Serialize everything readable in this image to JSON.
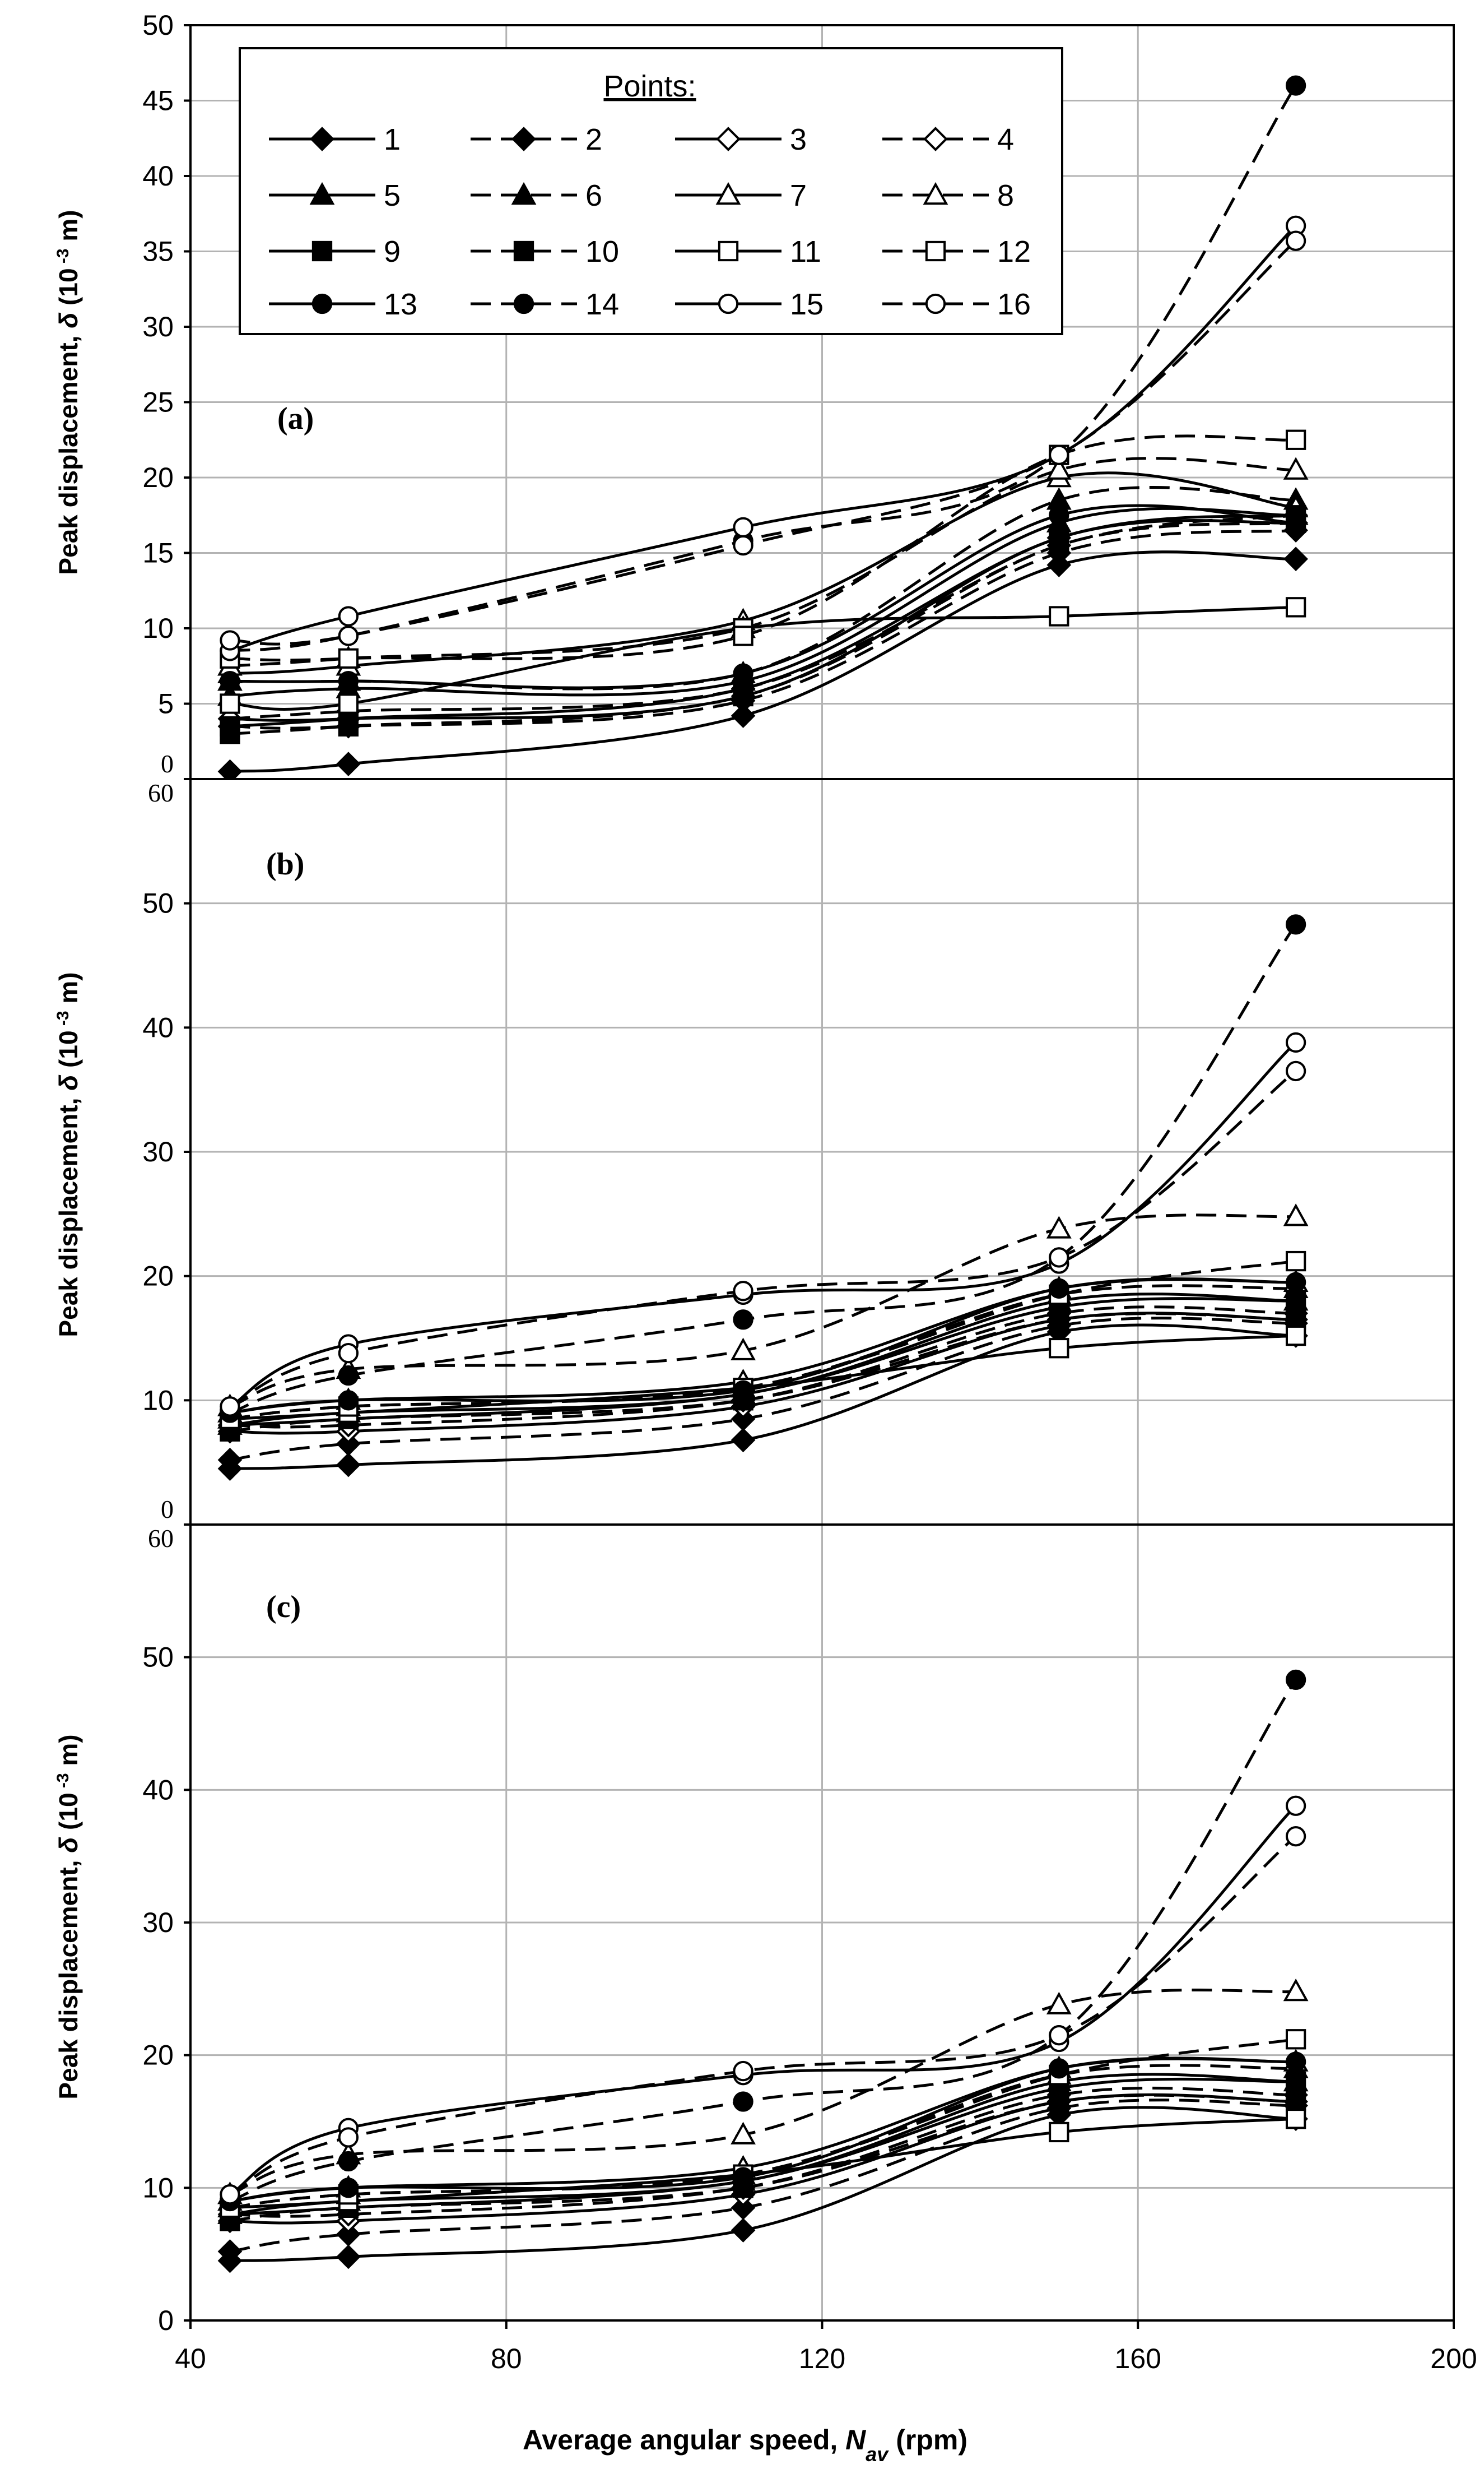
{
  "figure": {
    "xlabel_prefix": "Average angular speed, ",
    "xlabel_var": "N",
    "xlabel_sub": "av",
    "xlabel_unit": " (rpm)",
    "ylabel_prefix": "Peak displacement, ",
    "ylabel_var": "δ",
    "ylabel_unit_a": " (10",
    "ylabel_exp": " -3",
    "ylabel_unit_b": " m)"
  },
  "legend": {
    "title": "Points:",
    "entries": [
      {
        "label": "1",
        "marker": "diamond",
        "filled": true,
        "dash": false
      },
      {
        "label": "2",
        "marker": "diamond",
        "filled": true,
        "dash": true
      },
      {
        "label": "3",
        "marker": "diamond",
        "filled": false,
        "dash": false
      },
      {
        "label": "4",
        "marker": "diamond",
        "filled": false,
        "dash": true
      },
      {
        "label": "5",
        "marker": "triangle",
        "filled": true,
        "dash": false
      },
      {
        "label": "6",
        "marker": "triangle",
        "filled": true,
        "dash": true
      },
      {
        "label": "7",
        "marker": "triangle",
        "filled": false,
        "dash": false
      },
      {
        "label": "8",
        "marker": "triangle",
        "filled": false,
        "dash": true
      },
      {
        "label": "9",
        "marker": "square",
        "filled": true,
        "dash": false
      },
      {
        "label": "10",
        "marker": "square",
        "filled": true,
        "dash": true
      },
      {
        "label": "11",
        "marker": "square",
        "filled": false,
        "dash": false
      },
      {
        "label": "12",
        "marker": "square",
        "filled": false,
        "dash": true
      },
      {
        "label": "13",
        "marker": "circle",
        "filled": true,
        "dash": false
      },
      {
        "label": "14",
        "marker": "circle",
        "filled": true,
        "dash": true
      },
      {
        "label": "15",
        "marker": "circle",
        "filled": false,
        "dash": false
      },
      {
        "label": "16",
        "marker": "circle",
        "filled": false,
        "dash": true
      }
    ]
  },
  "chart_data": [
    {
      "type": "line",
      "panel": "(a)",
      "xlabel": "Average angular speed, Nav (rpm)",
      "ylabel": "Peak displacement, δ (10 -3 m)",
      "x": [
        45,
        60,
        110,
        150,
        180
      ],
      "xlim": [
        40,
        200
      ],
      "ylim": [
        0,
        50
      ],
      "xticks": [
        "40",
        "80",
        "120",
        "160",
        "200"
      ],
      "yticks": [
        "0",
        "5",
        "10",
        "15",
        "20",
        "25",
        "30",
        "35",
        "40",
        "45",
        "50"
      ],
      "series": [
        {
          "name": "1",
          "values": [
            0.5,
            1.0,
            4.2,
            14.2,
            14.6
          ]
        },
        {
          "name": "2",
          "values": [
            3.5,
            3.5,
            5.2,
            15.0,
            16.5
          ]
        },
        {
          "name": "3",
          "values": [
            4.0,
            4.0,
            5.5,
            16.0,
            17.0
          ]
        },
        {
          "name": "4",
          "values": [
            4.0,
            4.5,
            6.0,
            15.5,
            17.5
          ]
        },
        {
          "name": "5",
          "values": [
            5.5,
            6.0,
            6.5,
            17.0,
            17.5
          ]
        },
        {
          "name": "6",
          "values": [
            6.5,
            6.5,
            7.0,
            18.5,
            18.5
          ]
        },
        {
          "name": "7",
          "values": [
            7.0,
            7.5,
            10.5,
            20.0,
            18.0
          ]
        },
        {
          "name": "8",
          "values": [
            7.5,
            8.0,
            10.0,
            20.5,
            20.5
          ]
        },
        {
          "name": "9",
          "values": [
            3.5,
            4.0,
            6.0,
            16.0,
            17.5
          ]
        },
        {
          "name": "10",
          "values": [
            3.0,
            3.5,
            5.5,
            15.5,
            17.0
          ]
        },
        {
          "name": "11",
          "values": [
            5.0,
            5.0,
            10.0,
            10.8,
            11.4
          ]
        },
        {
          "name": "12",
          "values": [
            8.0,
            8.0,
            9.5,
            21.5,
            22.5
          ]
        },
        {
          "name": "13",
          "values": [
            6.5,
            6.5,
            7.0,
            17.5,
            17.0
          ]
        },
        {
          "name": "14",
          "values": [
            8.5,
            9.5,
            15.8,
            21.5,
            46.0
          ]
        },
        {
          "name": "15",
          "values": [
            8.5,
            10.8,
            16.7,
            21.5,
            36.7
          ]
        },
        {
          "name": "16",
          "values": [
            9.2,
            9.5,
            15.5,
            21.5,
            35.7
          ]
        }
      ]
    },
    {
      "type": "line",
      "panel": "(b)",
      "xlabel": "Average angular speed, Nav (rpm)",
      "ylabel": "Peak displacement, δ (10 -3 m)",
      "x": [
        45,
        60,
        110,
        150,
        180
      ],
      "xlim": [
        40,
        200
      ],
      "ylim": [
        0,
        60
      ],
      "xticks": [
        "40",
        "80",
        "120",
        "160",
        "200"
      ],
      "yticks": [
        "0",
        "10",
        "20",
        "30",
        "40",
        "50",
        "60"
      ],
      "series": [
        {
          "name": "1",
          "values": [
            4.5,
            4.8,
            6.8,
            15.5,
            15.2
          ]
        },
        {
          "name": "2",
          "values": [
            5.2,
            6.5,
            8.5,
            16.0,
            16.2
          ]
        },
        {
          "name": "3",
          "values": [
            7.5,
            7.5,
            9.5,
            16.5,
            16.5
          ]
        },
        {
          "name": "4",
          "values": [
            8.0,
            8.0,
            10.0,
            17.0,
            17.0
          ]
        },
        {
          "name": "5",
          "values": [
            8.0,
            9.0,
            10.5,
            18.0,
            18.0
          ]
        },
        {
          "name": "6",
          "values": [
            8.5,
            9.5,
            11.0,
            18.5,
            19.0
          ]
        },
        {
          "name": "7",
          "values": [
            9.0,
            10.0,
            11.5,
            19.0,
            19.5
          ]
        },
        {
          "name": "8",
          "values": [
            9.5,
            12.5,
            14.0,
            23.8,
            24.8
          ]
        },
        {
          "name": "9",
          "values": [
            8.0,
            8.5,
            10.5,
            17.5,
            18.0
          ]
        },
        {
          "name": "10",
          "values": [
            7.5,
            8.5,
            10.0,
            16.5,
            16.5
          ]
        },
        {
          "name": "11",
          "values": [
            8.5,
            9.0,
            11.0,
            14.2,
            15.2
          ]
        },
        {
          "name": "12",
          "values": [
            8.5,
            9.5,
            11.0,
            18.5,
            21.2
          ]
        },
        {
          "name": "13",
          "values": [
            9.0,
            10.0,
            10.8,
            19.0,
            19.5
          ]
        },
        {
          "name": "14",
          "values": [
            9.0,
            12.0,
            16.5,
            21.5,
            48.3
          ]
        },
        {
          "name": "15",
          "values": [
            9.5,
            14.5,
            18.5,
            21.0,
            38.8
          ]
        },
        {
          "name": "16",
          "values": [
            9.5,
            13.8,
            18.8,
            21.5,
            36.5
          ]
        }
      ]
    },
    {
      "type": "line",
      "panel": "(c)",
      "xlabel": "Average angular speed, Nav (rpm)",
      "ylabel": "Peak displacement, δ (10 -3 m)",
      "x": [
        45,
        60,
        110,
        150,
        180
      ],
      "xlim": [
        40,
        200
      ],
      "ylim": [
        0,
        60
      ],
      "xticks": [
        "40",
        "80",
        "120",
        "160",
        "200"
      ],
      "yticks": [
        "0",
        "10",
        "20",
        "30",
        "40",
        "50",
        "60"
      ],
      "series": [
        {
          "name": "1",
          "values": [
            4.5,
            4.8,
            6.8,
            15.5,
            15.2
          ]
        },
        {
          "name": "2",
          "values": [
            5.2,
            6.5,
            8.5,
            16.0,
            16.2
          ]
        },
        {
          "name": "3",
          "values": [
            7.5,
            7.5,
            9.5,
            16.5,
            16.5
          ]
        },
        {
          "name": "4",
          "values": [
            8.0,
            8.0,
            10.0,
            17.0,
            17.0
          ]
        },
        {
          "name": "5",
          "values": [
            8.0,
            9.0,
            10.5,
            18.0,
            18.0
          ]
        },
        {
          "name": "6",
          "values": [
            8.5,
            9.5,
            11.0,
            18.5,
            19.0
          ]
        },
        {
          "name": "7",
          "values": [
            9.0,
            10.0,
            11.5,
            19.0,
            19.5
          ]
        },
        {
          "name": "8",
          "values": [
            9.5,
            12.5,
            14.0,
            23.8,
            24.8
          ]
        },
        {
          "name": "9",
          "values": [
            8.0,
            8.5,
            10.5,
            17.5,
            18.0
          ]
        },
        {
          "name": "10",
          "values": [
            7.5,
            8.5,
            10.0,
            16.5,
            16.5
          ]
        },
        {
          "name": "11",
          "values": [
            8.5,
            9.0,
            11.0,
            14.2,
            15.2
          ]
        },
        {
          "name": "12",
          "values": [
            8.5,
            9.5,
            11.0,
            18.5,
            21.2
          ]
        },
        {
          "name": "13",
          "values": [
            9.0,
            10.0,
            10.8,
            19.0,
            19.5
          ]
        },
        {
          "name": "14",
          "values": [
            9.0,
            12.0,
            16.5,
            21.5,
            48.3
          ]
        },
        {
          "name": "15",
          "values": [
            9.5,
            14.5,
            18.5,
            21.0,
            38.8
          ]
        },
        {
          "name": "16",
          "values": [
            9.5,
            13.8,
            18.8,
            21.5,
            36.5
          ]
        }
      ]
    }
  ]
}
